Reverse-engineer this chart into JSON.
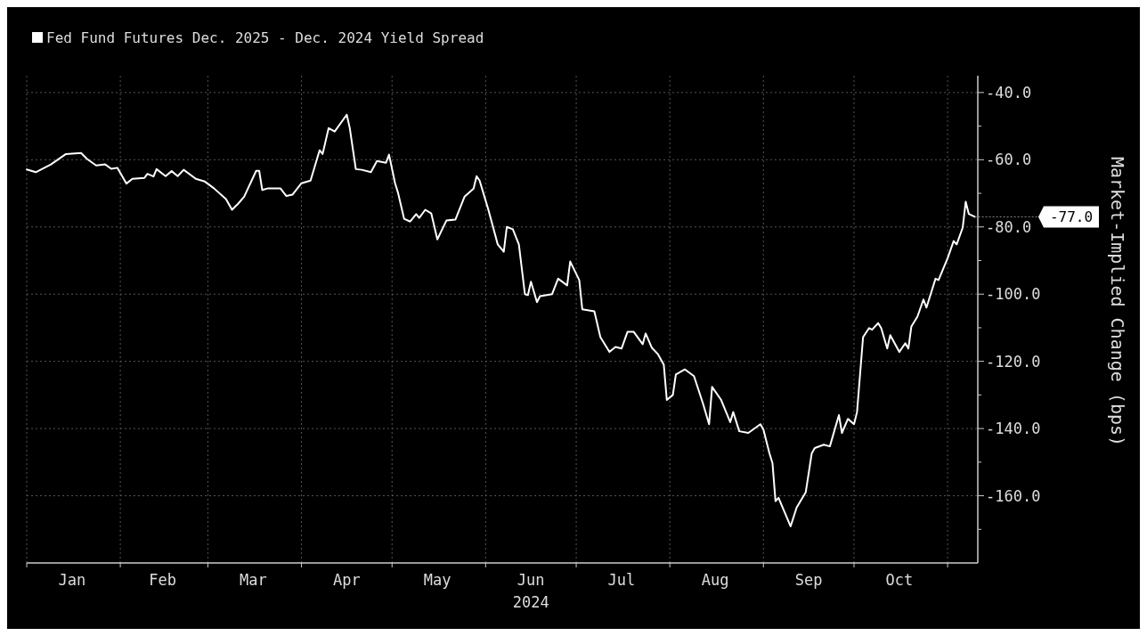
{
  "chart_data": {
    "type": "line",
    "xlabel": "2024",
    "ylabel": "Market-Implied Change (bps)",
    "legend": "top left",
    "grid": true,
    "marker": "none",
    "line_style": "solid",
    "xlim": [
      "2024-01-01",
      "2024-11-11"
    ],
    "xticks": [
      {
        "value": "2024-01-01",
        "label": null
      },
      {
        "value": "2024-01-16",
        "label": "Jan"
      },
      {
        "value": "2024-02-01",
        "label": null
      },
      {
        "value": "2024-02-15",
        "label": "Feb"
      },
      {
        "value": "2024-03-01",
        "label": null
      },
      {
        "value": "2024-03-16",
        "label": "Mar"
      },
      {
        "value": "2024-04-01",
        "label": null
      },
      {
        "value": "2024-04-16",
        "label": "Apr"
      },
      {
        "value": "2024-05-01",
        "label": null
      },
      {
        "value": "2024-05-16",
        "label": "May"
      },
      {
        "value": "2024-06-01",
        "label": null
      },
      {
        "value": "2024-06-16",
        "label": "Jun"
      },
      {
        "value": "2024-07-01",
        "label": null
      },
      {
        "value": "2024-07-16",
        "label": "Jul"
      },
      {
        "value": "2024-08-01",
        "label": null
      },
      {
        "value": "2024-08-16",
        "label": "Aug"
      },
      {
        "value": "2024-09-01",
        "label": null
      },
      {
        "value": "2024-09-16",
        "label": "Sep"
      },
      {
        "value": "2024-10-01",
        "label": null
      },
      {
        "value": "2024-10-16",
        "label": "Oct"
      },
      {
        "value": "2024-11-01",
        "label": null
      }
    ],
    "ylim": [
      -180,
      -35
    ],
    "yticks": [
      {
        "value": -40,
        "label": "-40.0"
      },
      {
        "value": -50,
        "label": null
      },
      {
        "value": -60,
        "label": "-60.0"
      },
      {
        "value": -70,
        "label": null
      },
      {
        "value": -80,
        "label": "-80.0"
      },
      {
        "value": -90,
        "label": null
      },
      {
        "value": -100,
        "label": "-100.0"
      },
      {
        "value": -110,
        "label": null
      },
      {
        "value": -120,
        "label": "-120.0"
      },
      {
        "value": -130,
        "label": null
      },
      {
        "value": -140,
        "label": "-140.0"
      },
      {
        "value": -150,
        "label": null
      },
      {
        "value": -160,
        "label": "-160.0"
      },
      {
        "value": -170,
        "label": null
      }
    ],
    "annotations": [
      {
        "text": "-77.0",
        "x": "2024-11-10",
        "y": -77
      }
    ],
    "series": [
      {
        "name": "Fed Fund Futures Dec. 2025 - Dec. 2024 Yield Spread",
        "color": "#ffffff",
        "x": [
          "2024-01-01",
          "2024-01-04",
          "2024-01-09",
          "2024-01-14",
          "2024-01-19",
          "2024-01-21",
          "2024-01-24",
          "2024-01-27",
          "2024-01-29",
          "2024-01-31",
          "2024-02-03",
          "2024-02-05",
          "2024-02-09",
          "2024-02-10",
          "2024-02-12",
          "2024-02-13",
          "2024-02-16",
          "2024-02-18",
          "2024-02-20",
          "2024-02-22",
          "2024-02-26",
          "2024-02-29",
          "2024-03-03",
          "2024-03-07",
          "2024-03-09",
          "2024-03-11",
          "2024-03-13",
          "2024-03-17",
          "2024-03-18",
          "2024-03-19",
          "2024-03-21",
          "2024-03-25",
          "2024-03-27",
          "2024-03-29",
          "2024-04-01",
          "2024-04-04",
          "2024-04-07",
          "2024-04-08",
          "2024-04-10",
          "2024-04-12",
          "2024-04-16",
          "2024-04-17",
          "2024-04-19",
          "2024-04-21",
          "2024-04-24",
          "2024-04-26",
          "2024-04-29",
          "2024-04-30",
          "2024-05-02",
          "2024-05-03",
          "2024-05-05",
          "2024-05-07",
          "2024-05-09",
          "2024-05-10",
          "2024-05-12",
          "2024-05-14",
          "2024-05-16",
          "2024-05-19",
          "2024-05-22",
          "2024-05-25",
          "2024-05-28",
          "2024-05-29",
          "2024-05-30",
          "2024-06-02",
          "2024-06-05",
          "2024-06-07",
          "2024-06-08",
          "2024-06-10",
          "2024-06-12",
          "2024-06-14",
          "2024-06-15",
          "2024-06-16",
          "2024-06-18",
          "2024-06-19",
          "2024-06-23",
          "2024-06-25",
          "2024-06-28",
          "2024-06-29",
          "2024-07-02",
          "2024-07-03",
          "2024-07-07",
          "2024-07-09",
          "2024-07-12",
          "2024-07-14",
          "2024-07-16",
          "2024-07-18",
          "2024-07-20",
          "2024-07-23",
          "2024-07-24",
          "2024-07-26",
          "2024-07-28",
          "2024-07-30",
          "2024-07-31",
          "2024-08-02",
          "2024-08-03",
          "2024-08-06",
          "2024-08-09",
          "2024-08-12",
          "2024-08-14",
          "2024-08-15",
          "2024-08-18",
          "2024-08-21",
          "2024-08-22",
          "2024-08-24",
          "2024-08-27",
          "2024-08-31",
          "2024-09-01",
          "2024-09-03",
          "2024-09-04",
          "2024-09-05",
          "2024-09-06",
          "2024-09-10",
          "2024-09-12",
          "2024-09-15",
          "2024-09-17",
          "2024-09-18",
          "2024-09-21",
          "2024-09-23",
          "2024-09-26",
          "2024-09-27",
          "2024-09-29",
          "2024-10-01",
          "2024-10-02",
          "2024-10-04",
          "2024-10-06",
          "2024-10-07",
          "2024-10-09",
          "2024-10-10",
          "2024-10-12",
          "2024-10-13",
          "2024-10-16",
          "2024-10-18",
          "2024-10-19",
          "2024-10-20",
          "2024-10-22",
          "2024-10-24",
          "2024-10-25",
          "2024-10-28",
          "2024-10-29",
          "2024-11-01",
          "2024-11-03",
          "2024-11-04",
          "2024-11-06",
          "2024-11-07",
          "2024-11-08",
          "2024-11-10"
        ],
        "values": [
          -62.9,
          -63.7,
          -61.4,
          -58.3,
          -58,
          -59.8,
          -61.7,
          -61.4,
          -62.7,
          -62.4,
          -67.1,
          -65.7,
          -65.4,
          -64.2,
          -65,
          -62.8,
          -64.9,
          -63.4,
          -64.9,
          -63,
          -65.7,
          -66.5,
          -68.5,
          -71.7,
          -74.9,
          -73.1,
          -71,
          -63.3,
          -63.3,
          -69,
          -68.5,
          -68.5,
          -70.8,
          -70.4,
          -67,
          -66.2,
          -57.2,
          -58.3,
          -50.6,
          -51.6,
          -46.6,
          -50.6,
          -62.8,
          -63,
          -63.7,
          -60.4,
          -60.9,
          -58.5,
          -67,
          -69.9,
          -77.6,
          -78.4,
          -76.2,
          -77.3,
          -74.9,
          -76,
          -83.7,
          -78.1,
          -77.8,
          -71,
          -68.6,
          -64.9,
          -66.2,
          -75.2,
          -85.2,
          -87.4,
          -80,
          -80.7,
          -85.2,
          -100,
          -100.3,
          -96.3,
          -102.4,
          -100.6,
          -100,
          -95.4,
          -97.4,
          -90.3,
          -95.8,
          -104.5,
          -105.1,
          -112.8,
          -117.2,
          -115.7,
          -116.2,
          -111.2,
          -111.2,
          -114.9,
          -111.7,
          -115.9,
          -117.8,
          -121,
          -131.5,
          -130,
          -123.9,
          -122.4,
          -124.4,
          -132.6,
          -138.7,
          -127.6,
          -131.5,
          -138.1,
          -135.1,
          -140.8,
          -141.3,
          -138.7,
          -140.3,
          -147.4,
          -150.3,
          -161.6,
          -160.6,
          -169.1,
          -163.5,
          -159,
          -147.4,
          -145.8,
          -144.8,
          -145.3,
          -136,
          -141.3,
          -137.1,
          -138.7,
          -135.1,
          -112.8,
          -110.1,
          -110.6,
          -108.6,
          -110.1,
          -116.2,
          -112.2,
          -117.2,
          -114.6,
          -116.2,
          -109.6,
          -106.7,
          -101.6,
          -104,
          -95.4,
          -95.8,
          -89.3,
          -84.2,
          -85.2,
          -80.2,
          -72.5,
          -76.1,
          -77
        ]
      }
    ]
  }
}
